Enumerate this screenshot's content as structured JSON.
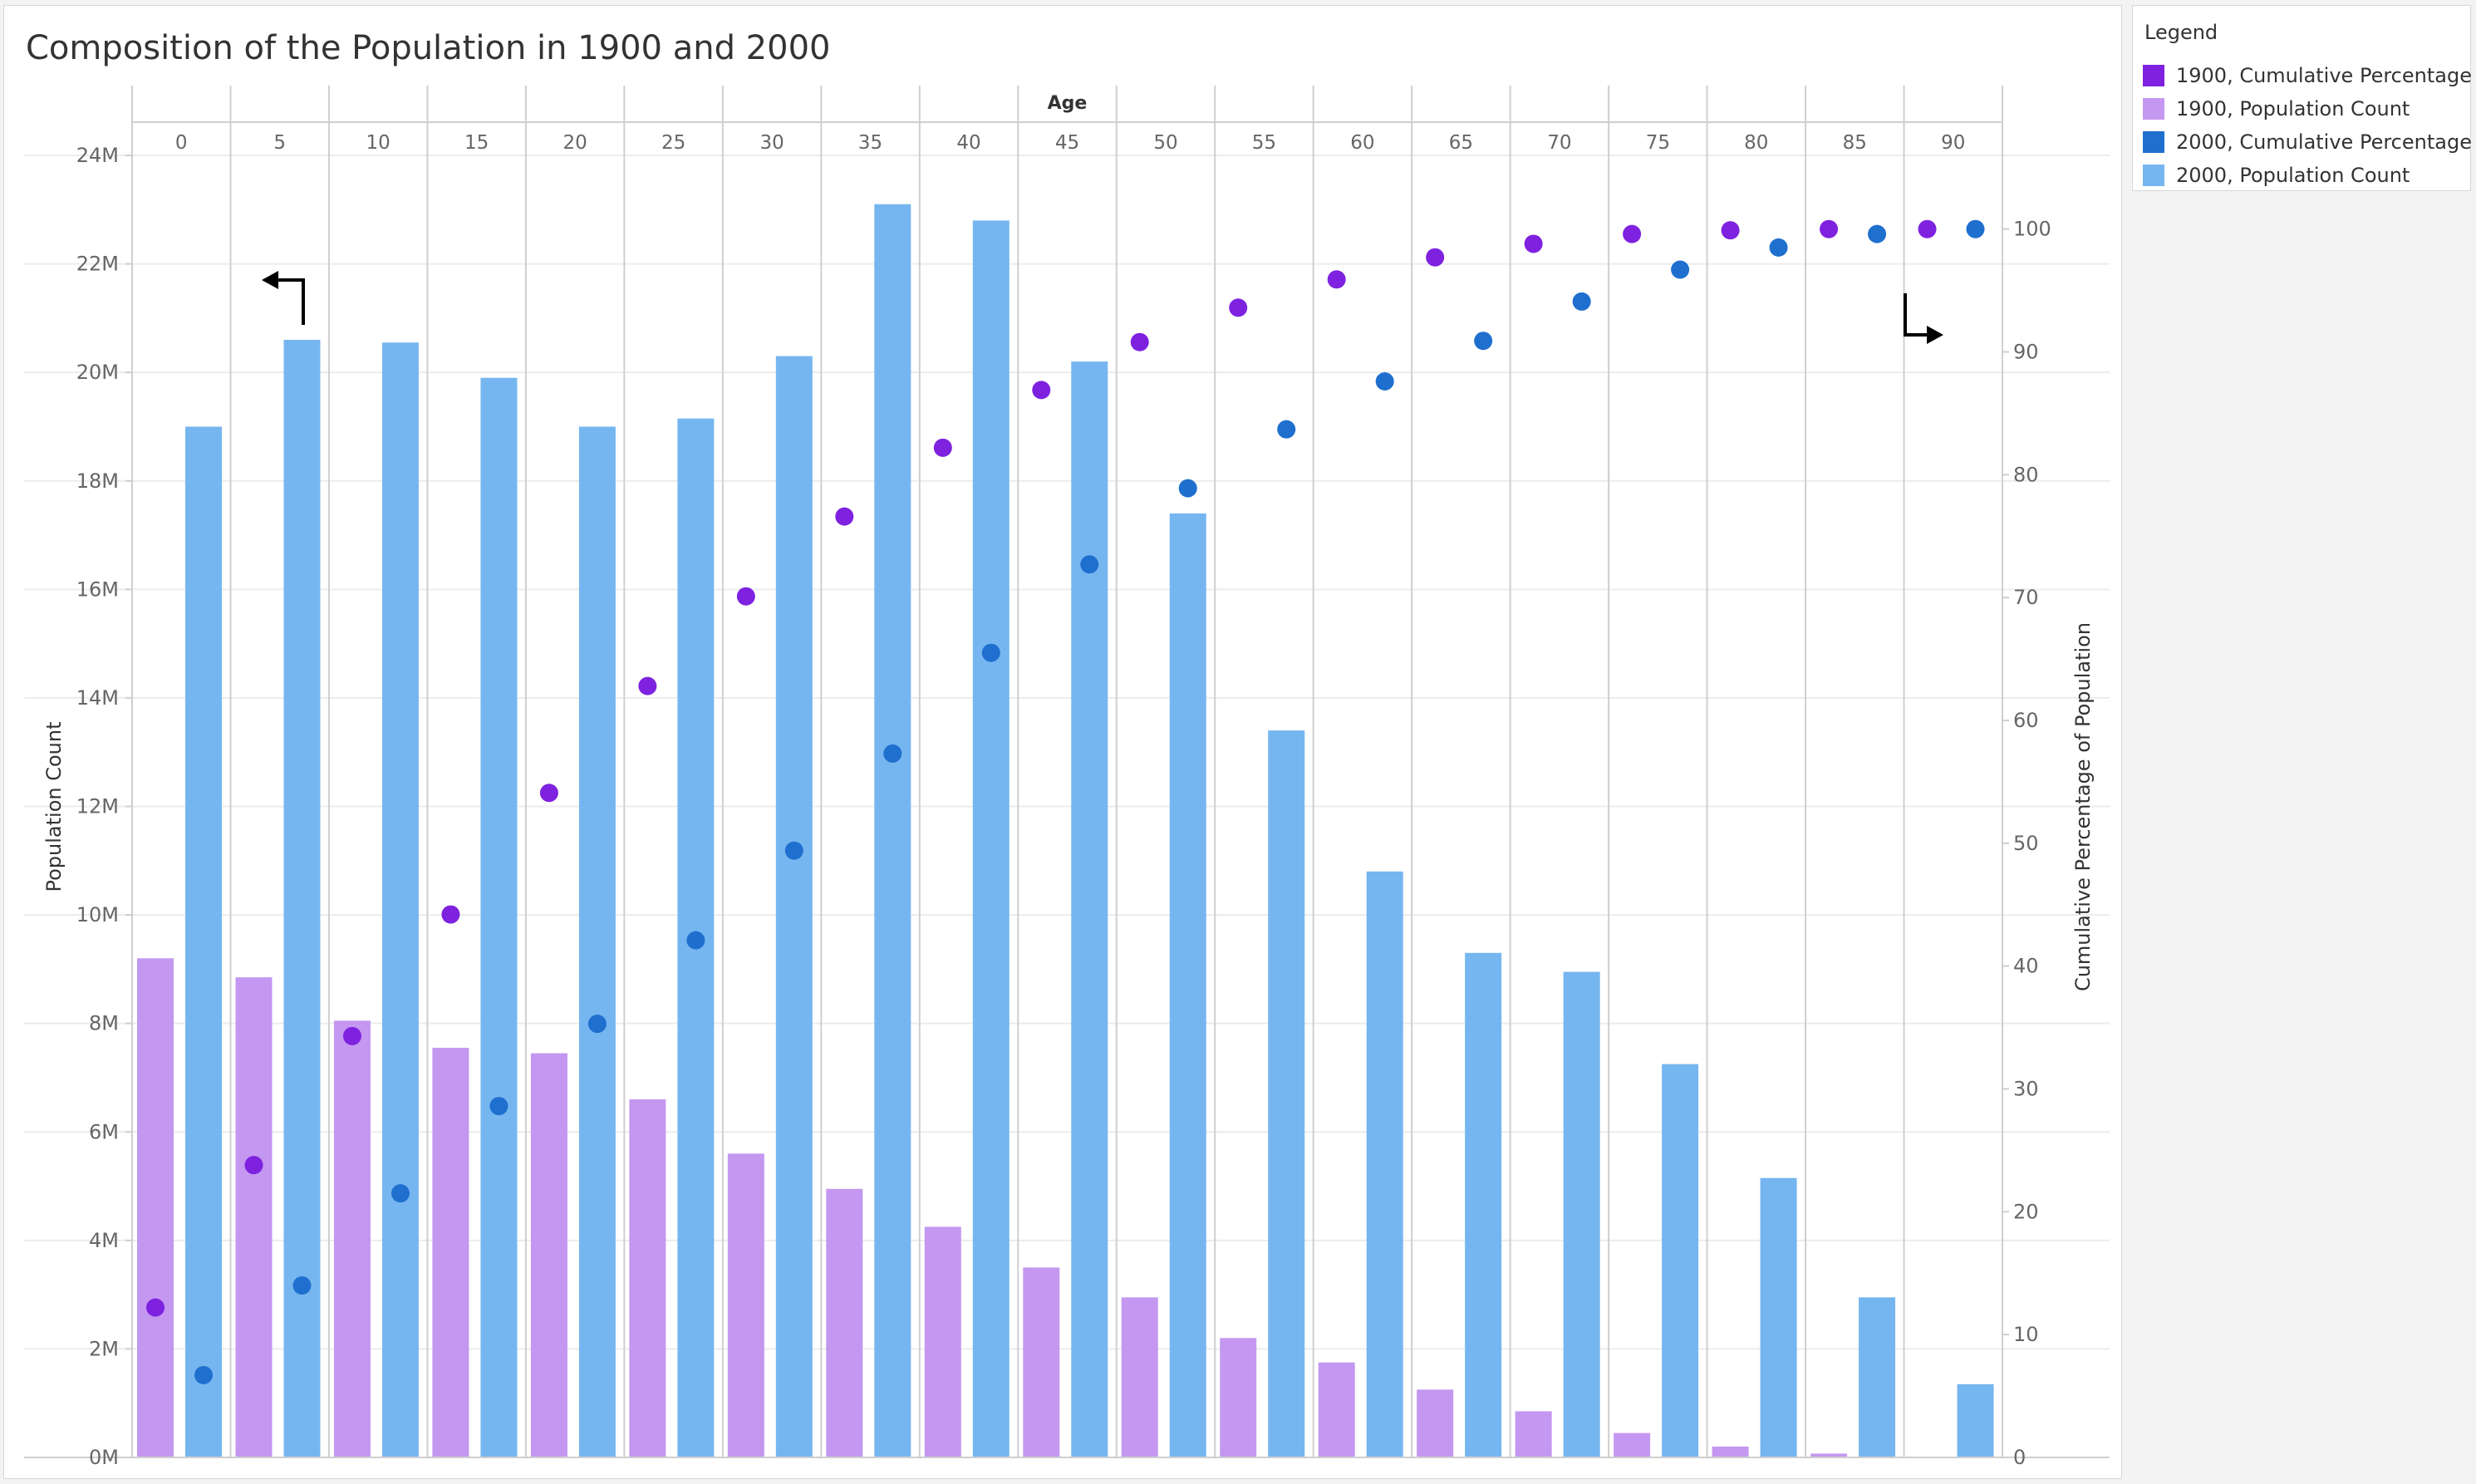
{
  "title": "Composition of the Population in 1900 and 2000",
  "legend": {
    "title": "Legend",
    "items": [
      {
        "label": "1900, Cumulative Percentage",
        "color": "#7e22e0"
      },
      {
        "label": "1900, Population Count",
        "color": "#c497f0"
      },
      {
        "label": "2000, Cumulative Percentage",
        "color": "#1f6fcf"
      },
      {
        "label": "2000, Population Count",
        "color": "#76b6f0"
      }
    ]
  },
  "colors": {
    "pop1900": "#c497f0",
    "pop2000": "#76b6f0",
    "cum1900": "#7e22e0",
    "cum2000": "#1f6fcf",
    "grid": "#ececec",
    "divider": "#cfcfcf",
    "axis_text": "#666666",
    "arrow": "#000000"
  },
  "chart_data": {
    "type": "bar",
    "title": "Composition of the Population in 1900 and 2000",
    "column_header": "Age",
    "categories": [
      "0",
      "5",
      "10",
      "15",
      "20",
      "25",
      "30",
      "35",
      "40",
      "45",
      "50",
      "55",
      "60",
      "65",
      "70",
      "75",
      "80",
      "85",
      "90"
    ],
    "ylabel_left": "Population Count",
    "ylabel_right": "Cumulative Percentage of Population",
    "ylim_left": [
      0,
      24000000
    ],
    "ylim_right": [
      0,
      106
    ],
    "left_ticks": [
      0,
      2000000,
      4000000,
      6000000,
      8000000,
      10000000,
      12000000,
      14000000,
      16000000,
      18000000,
      20000000,
      22000000,
      24000000
    ],
    "left_tick_labels": [
      "0M",
      "2M",
      "4M",
      "6M",
      "8M",
      "10M",
      "12M",
      "14M",
      "16M",
      "18M",
      "20M",
      "22M",
      "24M"
    ],
    "right_ticks": [
      0,
      10,
      20,
      30,
      40,
      50,
      60,
      70,
      80,
      90,
      100
    ],
    "right_tick_labels": [
      "0",
      "10",
      "20",
      "30",
      "40",
      "50",
      "60",
      "70",
      "80",
      "90",
      "100"
    ],
    "series": [
      {
        "name": "1900, Population Count",
        "type": "bar",
        "axis": "left",
        "values": [
          9200000,
          8850000,
          8050000,
          7550000,
          7450000,
          6600000,
          5600000,
          4950000,
          4250000,
          3500000,
          2950000,
          2200000,
          1750000,
          1250000,
          850000,
          450000,
          200000,
          70000,
          15000
        ]
      },
      {
        "name": "2000, Population Count",
        "type": "bar",
        "axis": "left",
        "values": [
          19000000,
          20600000,
          20550000,
          19900000,
          19000000,
          19150000,
          20300000,
          23100000,
          22800000,
          20200000,
          17400000,
          13400000,
          10800000,
          9300000,
          8950000,
          7250000,
          5150000,
          2950000,
          1350000
        ]
      },
      {
        "name": "1900, Cumulative Percentage",
        "type": "scatter",
        "axis": "right",
        "values": [
          12.2,
          23.8,
          34.3,
          44.2,
          54.1,
          62.8,
          70.1,
          76.6,
          82.2,
          86.9,
          90.8,
          93.6,
          95.9,
          97.7,
          98.8,
          99.6,
          99.9,
          100,
          100
        ]
      },
      {
        "name": "2000, Cumulative Percentage",
        "type": "scatter",
        "axis": "right",
        "values": [
          6.7,
          14.0,
          21.5,
          28.6,
          35.3,
          42.1,
          49.4,
          57.3,
          65.5,
          72.7,
          78.9,
          83.7,
          87.6,
          90.9,
          94.1,
          96.7,
          98.5,
          99.6,
          100
        ]
      }
    ],
    "grid": true,
    "legend_position": "right"
  }
}
